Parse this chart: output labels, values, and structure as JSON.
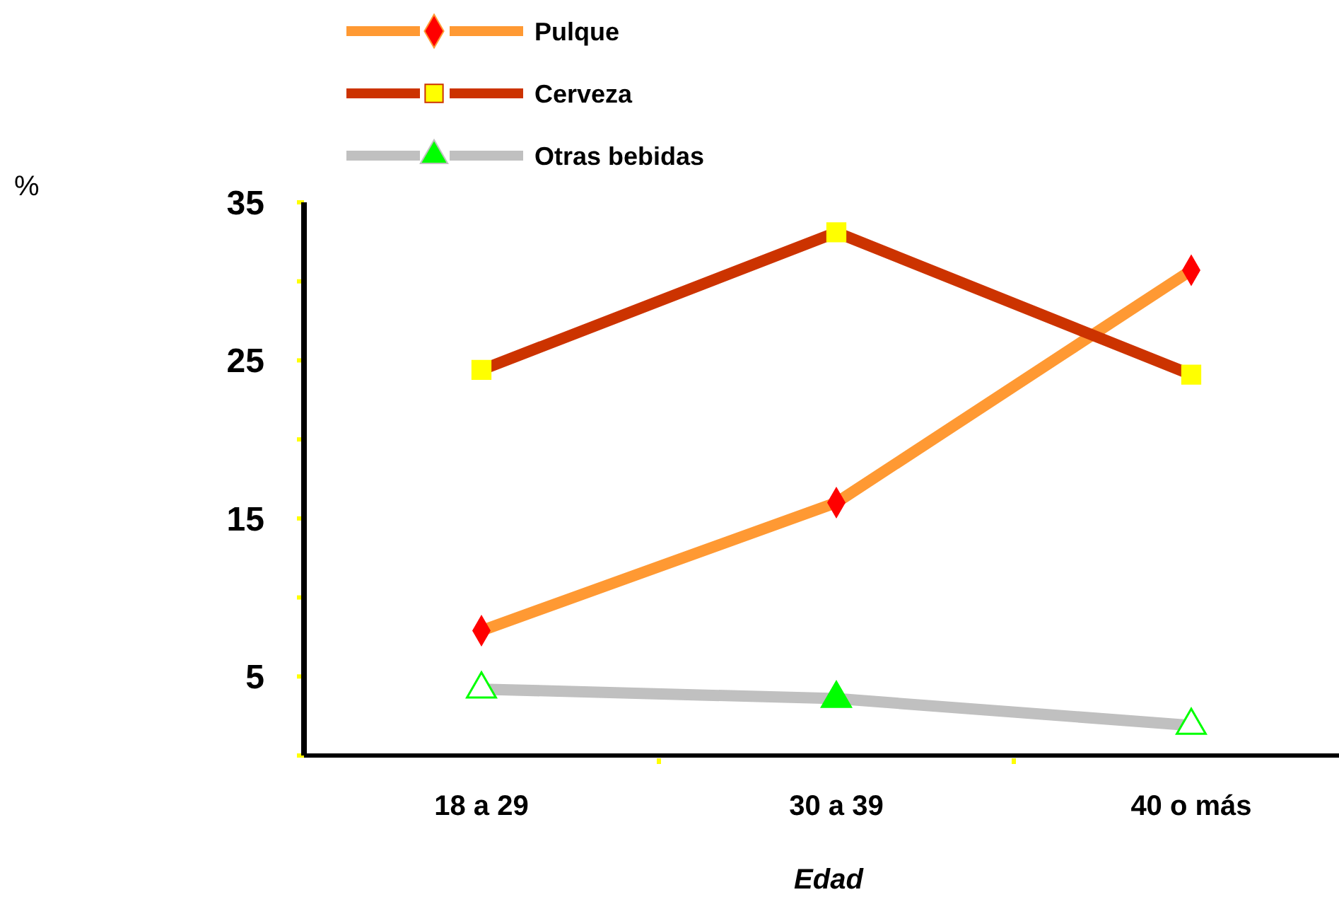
{
  "chart_data": {
    "type": "line",
    "xlabel": "Edad",
    "annotations": [
      "%"
    ],
    "categories": [
      "18 a 29",
      "30 a 39",
      "40 o más"
    ],
    "ylim": [
      0,
      35
    ],
    "yticks": [
      {
        "value": 0,
        "label": null
      },
      5,
      {
        "value": 10,
        "label": null
      },
      15,
      {
        "value": 20,
        "label": null
      },
      25,
      {
        "value": 30,
        "label": null
      },
      35
    ],
    "grid": false,
    "legend": "top",
    "line_style": "solid",
    "series": [
      {
        "name": "Pulque",
        "color": "#ff9933",
        "marker": "diamond",
        "colors": [
          "#ff0000",
          "#ff0000",
          "#ff0000"
        ],
        "values": [
          7.9,
          16.0,
          30.7
        ]
      },
      {
        "name": "Cerveza",
        "color": "#cc3300",
        "marker": "square",
        "colors": [
          "#ffff00",
          "#ffff00",
          "#ffff00"
        ],
        "values": [
          24.4,
          33.1,
          24.1
        ]
      },
      {
        "name": "Otras bebidas",
        "color": "#c0c0c0",
        "marker": "triangle",
        "colors": [
          "#00ff00",
          "#00ff00",
          "#00ff00"
        ],
        "values": [
          4.2,
          3.6,
          1.9
        ]
      }
    ]
  }
}
